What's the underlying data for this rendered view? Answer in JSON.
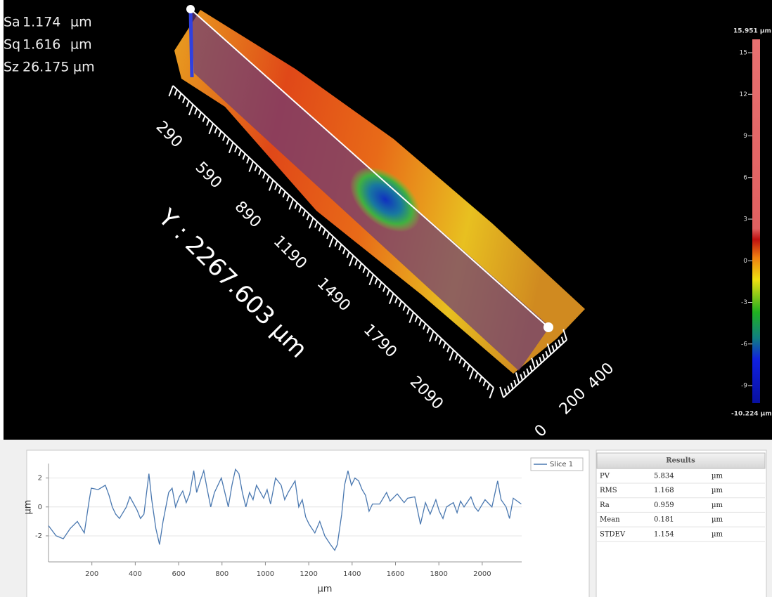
{
  "stats": [
    {
      "name": "Sa",
      "value": "1.174",
      "unit": "µm"
    },
    {
      "name": "Sq",
      "value": "1.616",
      "unit": "µm"
    },
    {
      "name": "Sz",
      "value": "26.175",
      "unit": "µm"
    }
  ],
  "view3d": {
    "y_ticks": [
      "290",
      "590",
      "890",
      "1190",
      "1490",
      "1790",
      "2090"
    ],
    "y_label": "Y : 2267.603 µm",
    "x_ticks": [
      "0",
      "200",
      "400"
    ]
  },
  "colorbar": {
    "max": {
      "value": 15.951,
      "label": "15.951 µm"
    },
    "min": {
      "value": -10.224,
      "label": "-10.224 µm"
    },
    "ticks": [
      15,
      12,
      9,
      6,
      3,
      0,
      -3,
      -6,
      -9
    ]
  },
  "chart_data": {
    "type": "line",
    "xlabel": "µm",
    "ylabel": "µm",
    "x": [
      0,
      35,
      68,
      100,
      133,
      165,
      188,
      197,
      229,
      262,
      279,
      294,
      310,
      327,
      359,
      375,
      408,
      424,
      440,
      463,
      476,
      495,
      512,
      528,
      554,
      570,
      586,
      603,
      619,
      635,
      651,
      670,
      683,
      700,
      716,
      732,
      748,
      765,
      797,
      813,
      829,
      846,
      862,
      878,
      894,
      910,
      927,
      943,
      959,
      992,
      1008,
      1024,
      1047,
      1073,
      1089,
      1105,
      1137,
      1154,
      1170,
      1186,
      1202,
      1228,
      1251,
      1274,
      1300,
      1320,
      1332,
      1352,
      1365,
      1381,
      1397,
      1413,
      1430,
      1446,
      1462,
      1478,
      1494,
      1527,
      1559,
      1575,
      1608,
      1640,
      1656,
      1689,
      1715,
      1738,
      1760,
      1786,
      1802,
      1819,
      1835,
      1867,
      1884,
      1900,
      1916,
      1948,
      1965,
      1981,
      2013,
      2045,
      2071,
      2087,
      2110,
      2126,
      2143,
      2180
    ],
    "series": [
      {
        "name": "Slice 1",
        "color": "#4a78b0",
        "values": [
          -1.3,
          -2.0,
          -2.2,
          -1.5,
          -1.0,
          -1.8,
          0.5,
          1.3,
          1.2,
          1.5,
          0.8,
          0.0,
          -0.5,
          -0.8,
          0.0,
          0.7,
          -0.2,
          -0.8,
          -0.5,
          2.3,
          0.5,
          -1.5,
          -2.6,
          -1.0,
          1.0,
          1.3,
          0.0,
          0.7,
          1.1,
          0.3,
          0.9,
          2.5,
          1.0,
          1.8,
          2.5,
          1.2,
          0.0,
          1.0,
          2.0,
          1.0,
          0.0,
          1.5,
          2.6,
          2.3,
          1.0,
          0.0,
          1.0,
          0.5,
          1.5,
          0.6,
          1.2,
          0.2,
          2.0,
          1.5,
          0.5,
          1.0,
          1.8,
          0.0,
          0.5,
          -0.7,
          -1.2,
          -1.8,
          -1.0,
          -2.0,
          -2.6,
          -3.0,
          -2.6,
          -0.5,
          1.5,
          2.5,
          1.5,
          2.0,
          1.8,
          1.2,
          0.8,
          -0.3,
          0.2,
          0.2,
          1.0,
          0.4,
          0.9,
          0.3,
          0.6,
          0.7,
          -1.2,
          0.3,
          -0.5,
          0.5,
          -0.3,
          -0.8,
          0.0,
          0.3,
          -0.4,
          0.4,
          0.0,
          0.7,
          0.0,
          -0.3,
          0.5,
          0.0,
          1.8,
          0.5,
          0.0,
          -0.8,
          0.6,
          0.2
        ]
      }
    ],
    "xlim": [
      0,
      2182
    ],
    "ylim": [
      -3.8,
      3.0
    ],
    "xticks": [
      200,
      400,
      600,
      800,
      1000,
      1200,
      1400,
      1600,
      1800,
      2000
    ],
    "yticks": [
      -2,
      0,
      2
    ],
    "grid": true
  },
  "results": {
    "title": "Results",
    "rows": [
      [
        "PV",
        "5.834",
        "µm"
      ],
      [
        "RMS",
        "1.168",
        "µm"
      ],
      [
        "Ra",
        "0.959",
        "µm"
      ],
      [
        "Mean",
        "0.181",
        "µm"
      ],
      [
        "STDEV",
        "1.154",
        "µm"
      ]
    ]
  }
}
